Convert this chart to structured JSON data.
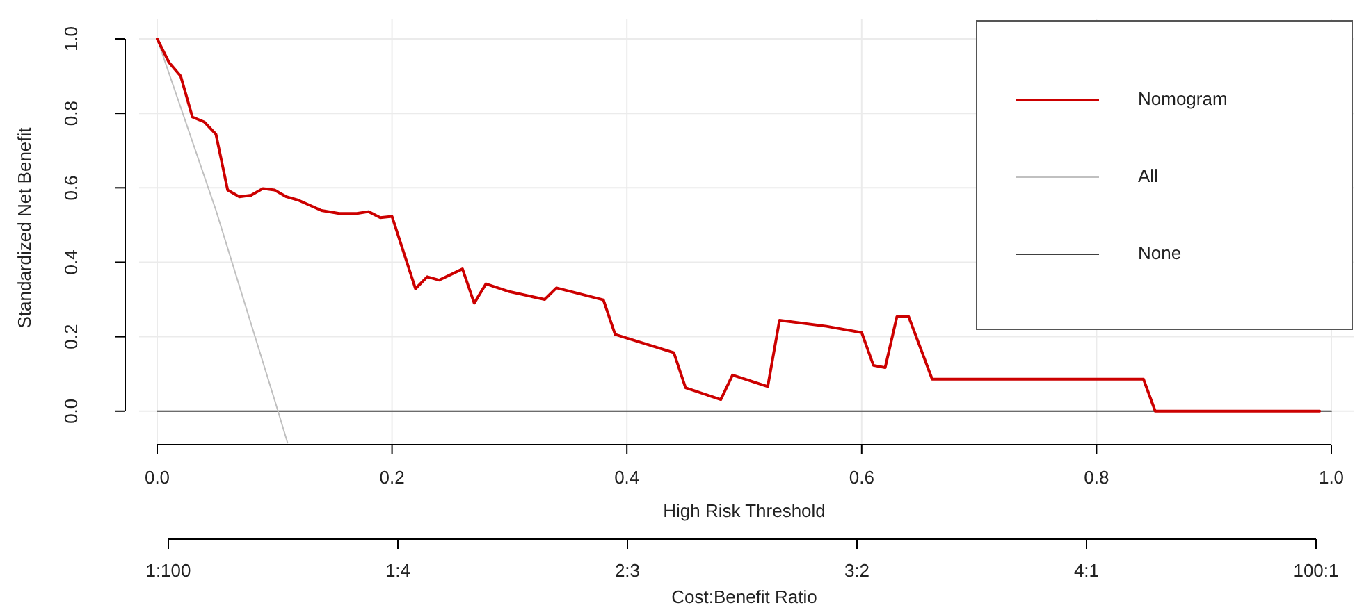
{
  "chart_data": {
    "type": "line",
    "xlabel": "High Risk Threshold",
    "ylabel": "Standardized Net Benefit",
    "x2label": "Cost:Benefit Ratio",
    "xlim": [
      0,
      1
    ],
    "xticks": [
      {
        "value": 0,
        "label": "0.0"
      },
      0.2,
      0.4,
      0.6,
      0.8,
      {
        "value": 1,
        "label": "1.0"
      }
    ],
    "ylim": [
      -0.09,
      1.0
    ],
    "yticks": [
      {
        "value": 0,
        "label": "0.0"
      },
      0.2,
      0.4,
      0.6,
      0.8,
      {
        "value": 1,
        "label": "1.0"
      }
    ],
    "annotations": [
      "1:100",
      "1:4",
      "2:3",
      "3:2",
      "4:1",
      "100:1"
    ],
    "grid": true,
    "legend": "top right",
    "line_style": "solid",
    "series": [
      {
        "name": "Nomogram",
        "color": "#cc0000",
        "x": [
          0,
          0.01,
          0.02,
          0.03,
          0.04,
          0.05,
          0.06,
          0.07,
          0.08,
          0.09,
          0.1,
          0.11,
          0.12,
          0.14,
          0.155,
          0.17,
          0.18,
          0.19,
          0.2,
          0.22,
          0.23,
          0.24,
          0.26,
          0.27,
          0.28,
          0.3,
          0.33,
          0.34,
          0.38,
          0.39,
          0.44,
          0.45,
          0.48,
          0.49,
          0.52,
          0.53,
          0.57,
          0.6,
          0.61,
          0.62,
          0.63,
          0.64,
          0.66,
          0.84,
          0.85,
          0.99
        ],
        "values": [
          1.0,
          0.937,
          0.9,
          0.79,
          0.777,
          0.744,
          0.594,
          0.576,
          0.58,
          0.598,
          0.594,
          0.576,
          0.567,
          0.539,
          0.531,
          0.531,
          0.536,
          0.52,
          0.523,
          0.329,
          0.361,
          0.352,
          0.382,
          0.29,
          0.342,
          0.321,
          0.3,
          0.331,
          0.299,
          0.206,
          0.157,
          0.063,
          0.031,
          0.097,
          0.066,
          0.244,
          0.228,
          0.211,
          0.123,
          0.117,
          0.254,
          0.254,
          0.086,
          0.086,
          0.0,
          0.0
        ]
      },
      {
        "name": "All",
        "color": "#c0c0c0",
        "x": [
          0,
          0.05,
          0.1,
          0.111
        ],
        "values": [
          1.0,
          0.54,
          0.03,
          -0.085
        ]
      },
      {
        "name": "None",
        "color": "#404040",
        "x": [
          0,
          1
        ],
        "values": [
          0,
          0
        ]
      }
    ]
  }
}
